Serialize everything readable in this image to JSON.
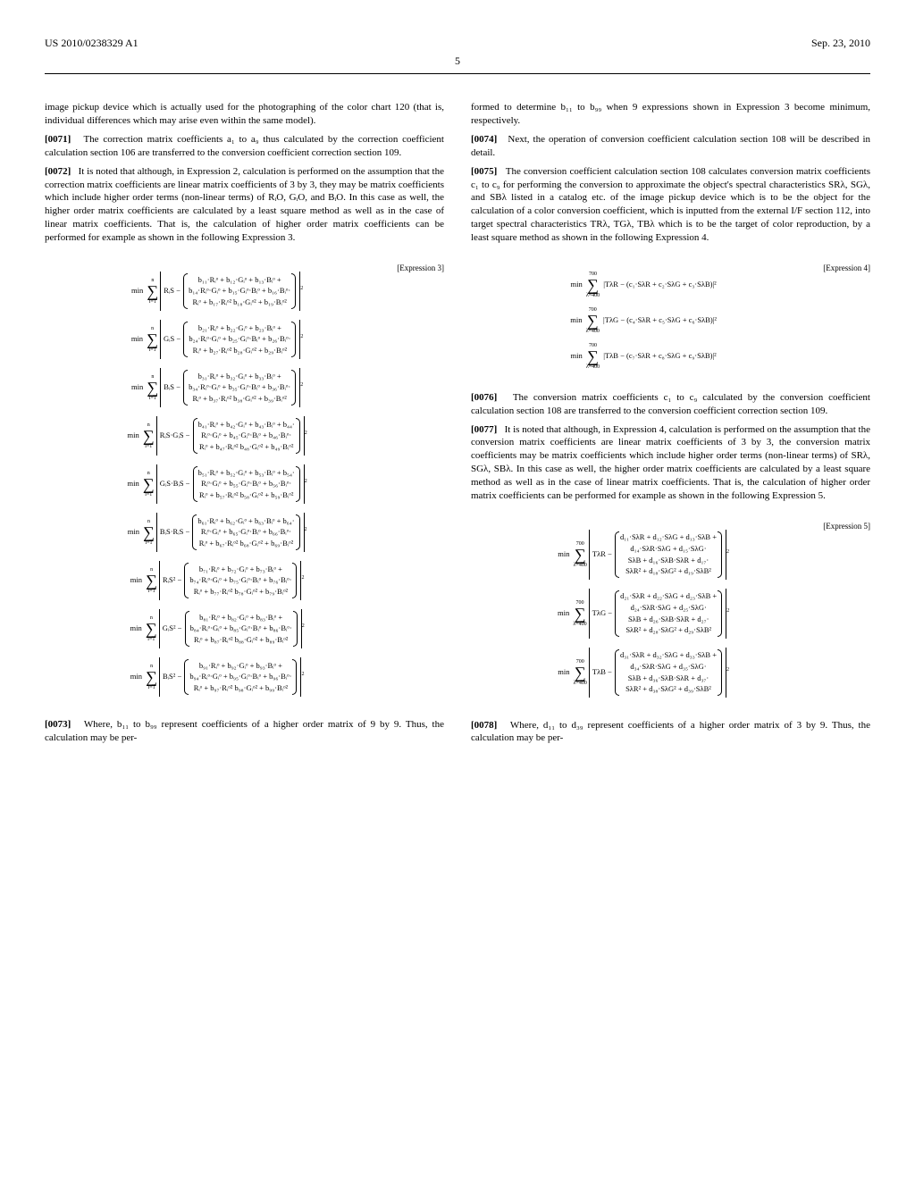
{
  "header": {
    "pub_no": "US 2010/0238329 A1",
    "date": "Sep. 23, 2010",
    "page_no": "5"
  },
  "left": {
    "p0": "image pickup device which is actually used for the photographing of the color chart 120 (that is, individual differences which may arise even within the same model).",
    "p71_label": "[0071]",
    "p71": "The correction matrix coefficients a₁ to a₉ thus calculated by the correction coefficient calculation section 106 are transferred to the conversion coefficient correction section 109.",
    "p72_label": "[0072]",
    "p72": "It is noted that although, in Expression 2, calculation is performed on the assumption that the correction matrix coefficients are linear matrix coefficients of 3 by 3, they may be matrix coefficients which include higher order terms (non-linear terms) of RᵢO, GᵢO, and BᵢO. In this case as well, the higher order matrix coefficients are calculated by a least square method as well as in the case of linear matrix coefficients. That is, the calculation of higher order matrix coefficients can be performed for example as shown in the following Expression 3.",
    "expr3_label": "[Expression 3]",
    "expr3_lines": [
      {
        "lhs": "RᵢS",
        "terms": [
          "b₁₁·Rᵢᵒ + b₁₂·Gᵢᵒ + b₁₃·Bᵢᵒ +",
          "b₁₄·Rᵢᵒ·Gᵢᵒ + b₁₅·Gᵢᵒ·Bᵢᵒ + b₁₆·Bᵢᵒ·",
          "Rᵢᵒ + b₁₇·Rᵢᵒ² b₁₈·Gᵢᵒ² + b₁₉·Bᵢᵒ²"
        ]
      },
      {
        "lhs": "GᵢS",
        "terms": [
          "b₂₁·Rᵢᵒ + b₂₂·Gᵢᵒ + b₂₃·Bᵢᵒ +",
          "b₂₄·Rᵢᵒ·Gᵢᵒ + b₂₅·Gᵢᵒ·Bᵢᵒ + b₂₆·Bᵢᵒ·",
          "Rᵢᵒ + b₂₇·Rᵢᵒ² b₂₈·Gᵢᵒ² + b₂₉·Bᵢᵒ²"
        ]
      },
      {
        "lhs": "BᵢS",
        "terms": [
          "b₃₁·Rᵢᵒ + b₃₂·Gᵢᵒ + b₃₃·Bᵢᵒ +",
          "b₃₄·Rᵢᵒ·Gᵢᵒ + b₃₅·Gᵢᵒ·Bᵢᵒ + b₃₆·Bᵢᵒ·",
          "Rᵢᵒ + b₃₇·Rᵢᵒ² b₃₈·Gᵢᵒ² + b₃₉·Bᵢᵒ²"
        ]
      },
      {
        "lhs": "RᵢS·GᵢS",
        "terms": [
          "b₄₁·Rᵢᵒ + b₄₂·Gᵢᵒ + b₄₃·Bᵢᵒ + b₄₄·",
          "Rᵢᵒ·Gᵢᵒ + b₄₅·Gᵢᵒ·Bᵢᵒ + b₄₆·Bᵢᵒ·",
          "Rᵢᵒ + b₄₇·Rᵢᵒ² b₄₈·Gᵢᵒ² + b₄₉·Bᵢᵒ²"
        ]
      },
      {
        "lhs": "GᵢS·BᵢS",
        "terms": [
          "b₅₁·Rᵢᵒ + b₅₂·Gᵢᵒ + b₅₃·Bᵢᵒ + b₅₄·",
          "Rᵢᵒ·Gᵢᵒ + b₅₅·Gᵢᵒ·Bᵢᵒ + b₅₆·Bᵢᵒ·",
          "Rᵢᵒ + b₅₇·Rᵢᵒ² b₅₈·Gᵢᵒ² + b₅₉·Bᵢᵒ²"
        ]
      },
      {
        "lhs": "BᵢS·RᵢS",
        "terms": [
          "b₆₁·Rᵢᵒ + b₆₂·Gᵢᵒ + b₆₃·Bᵢᵒ + b₆₄·",
          "Rᵢᵒ·Gᵢᵒ + b₆₅·Gᵢᵒ·Bᵢᵒ + b₆₆·Bᵢᵒ·",
          "Rᵢᵒ + b₆₇·Rᵢᵒ² b₆₈·Gᵢᵒ² + b₆₉·Bᵢᵒ²"
        ]
      },
      {
        "lhs": "RᵢS²",
        "terms": [
          "b₇₁·Rᵢᵒ + b₇₂·Gᵢᵒ + b₇₃·Bᵢᵒ +",
          "b₇₄·Rᵢᵒ·Gᵢᵒ + b₇₅·Gᵢᵒ·Bᵢᵒ + b₇₆·Bᵢᵒ·",
          "Rᵢᵒ + b₇₇·Rᵢᵒ² b₇₈·Gᵢᵒ² + b₇₉·Bᵢᵒ²"
        ]
      },
      {
        "lhs": "GᵢS²",
        "terms": [
          "b₈₁·Rᵢᵒ + b₈₂·Gᵢᵒ + b₈₃·Bᵢᵒ +",
          "b₈₄·Rᵢᵒ·Gᵢᵒ + b₈₅·Gᵢᵒ·Bᵢᵒ + b₈₆·Bᵢᵒ·",
          "Rᵢᵒ + b₈₇·Rᵢᵒ² b₈₈·Gᵢᵒ² + b₈₉·Bᵢᵒ²"
        ]
      },
      {
        "lhs": "BᵢS²",
        "terms": [
          "b₉₁·Rᵢᵒ + b₉₂·Gᵢᵒ + b₉₃·Bᵢᵒ +",
          "b₉₄·Rᵢᵒ·Gᵢᵒ + b₉₅·Gᵢᵒ·Bᵢᵒ + b₉₆·Bᵢᵒ·",
          "Rᵢᵒ + b₉₇·Rᵢᵒ² b₉₈·Gᵢᵒ² + b₉₉·Bᵢᵒ²"
        ]
      }
    ],
    "expr3_sum_upper": "n",
    "expr3_sum_lower": "i=1",
    "p73_label": "[0073]",
    "p73": "Where, b₁₁ to b₉₉ represent coefficients of a higher order matrix of 9 by 9. Thus, the calculation may be per-"
  },
  "right": {
    "p0": "formed to determine b₁₁ to b₉₉ when 9 expressions shown in Expression 3 become minimum, respectively.",
    "p74_label": "[0074]",
    "p74": "Next, the operation of conversion coefficient calculation section 108 will be described in detail.",
    "p75_label": "[0075]",
    "p75": "The conversion coefficient calculation section 108 calculates conversion matrix coefficients c₁ to c₉ for performing the conversion to approximate the object's spectral characteristics SRλ, SGλ, and SBλ listed in a catalog etc. of the image pickup device which is to be the object for the calculation of a color conversion coefficient, which is inputted from the external I/F section 112, into target spectral characteristics TRλ, TGλ, TBλ which is to be the target of color reproduction, by a least square method as shown in the following Expression 4.",
    "expr4_label": "[Expression 4]",
    "expr4_lines": [
      "|TλR − (c₁·SλR + c₂·SλG + c₃·SλB)|²",
      "|TλG − (c₄·SλR + c₅·SλG + c₆·SλB)|²",
      "|TλB − (c₇·SλR + c₈·SλG + c₉·SλB)|²"
    ],
    "expr4_sum_upper": "700",
    "expr4_sum_lower": "λ=400",
    "p76_label": "[0076]",
    "p76": "The conversion matrix coefficients c₁ to c₉ calculated by the conversion coefficient calculation section 108 are transferred to the conversion coefficient correction section 109.",
    "p77_label": "[0077]",
    "p77": "It is noted that although, in Expression 4, calculation is performed on the assumption that the conversion matrix coefficients are linear matrix coefficients of 3 by 3, the conversion matrix coefficients may be matrix coefficients which include higher order terms (non-linear terms) of SRλ, SGλ, SBλ. In this case as well, the higher order matrix coefficients are calculated by a least square method as well as in the case of linear matrix coefficients. That is, the calculation of higher order matrix coefficients can be performed for example as shown in the following Expression 5.",
    "expr5_label": "[Expression 5]",
    "expr5_lines": [
      {
        "lhs": "TλR",
        "terms": [
          "d₁₁·SλR + d₁₂·SλG + d₁₃·SλB +",
          "d₁₄·SλR·SλG + d₁₅·SλG·",
          "SλB + d₁₆·SλB·SλR + d₁₇·",
          "SλR² + d₁₈·SλG² + d₁₉·SλB²"
        ]
      },
      {
        "lhs": "TλG",
        "terms": [
          "d₂₁·SλR + d₂₂·SλG + d₂₃·SλB +",
          "d₂₄·SλR·SλG + d₂₅·SλG·",
          "SλB + d₂₆·SλB·SλR + d₂₇·",
          "SλR² + d₂₈·SλG² + d₂₉·SλB²"
        ]
      },
      {
        "lhs": "TλB",
        "terms": [
          "d₃₁·SλR + d₃₂·SλG + d₃₃·SλB +",
          "d₃₄·SλR·SλG + d₃₅·SλG·",
          "SλB + d₃₆·SλB·SλR + d₃₇·",
          "SλR² + d₃₈·SλG² + d₃₉·SλB²"
        ]
      }
    ],
    "expr5_sum_upper": "700",
    "expr5_sum_lower": "λ=400",
    "p78_label": "[0078]",
    "p78": "Where, d₁₁ to d₃₉ represent coefficients of a higher order matrix of 3 by 9. Thus, the calculation may be per-"
  }
}
